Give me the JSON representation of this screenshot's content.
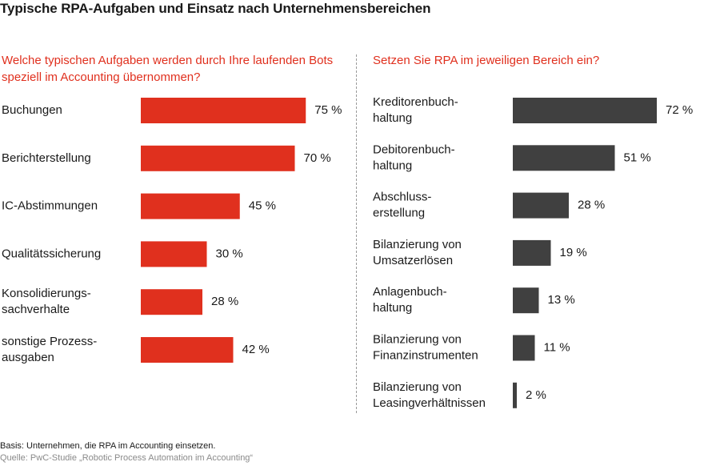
{
  "title": "Typische RPA-Aufgaben und Einsatz nach Unternehmensbereichen",
  "colors": {
    "left_bar": "#e0301e",
    "right_bar": "#404040",
    "question": "#e0301e"
  },
  "chart_data": [
    {
      "type": "bar",
      "orientation": "horizontal",
      "title": "Welche typischen Aufgaben werden durch Ihre laufenden Bots speziell im Accounting übernommen?",
      "categories": [
        [
          "Buchungen"
        ],
        [
          "Berichterstellung"
        ],
        [
          "IC-Abstimmungen"
        ],
        [
          "Qualitätssicherung"
        ],
        [
          "Konsolidierungs-",
          "sachverhalte"
        ],
        [
          "sonstige Prozess-",
          "ausgaben"
        ]
      ],
      "values": [
        75,
        70,
        45,
        30,
        28,
        42
      ],
      "value_labels": [
        "75 %",
        "70 %",
        "45 %",
        "30 %",
        "28 %",
        "42 %"
      ],
      "unit": "%",
      "xlim": [
        0,
        100
      ]
    },
    {
      "type": "bar",
      "orientation": "horizontal",
      "title": "Setzen Sie RPA im jeweiligen Bereich ein?",
      "categories": [
        [
          "Kreditorenbuch-",
          "haltung"
        ],
        [
          "Debitorenbuch-",
          "haltung"
        ],
        [
          "Abschluss-",
          "erstellung"
        ],
        [
          "Bilanzierung von",
          "Umsatzerlösen"
        ],
        [
          "Anlagenbuch-",
          "haltung"
        ],
        [
          "Bilanzierung von",
          "Finanzinstrumenten"
        ],
        [
          "Bilanzierung von",
          "Leasingverhältnissen"
        ]
      ],
      "values": [
        72,
        51,
        28,
        19,
        13,
        11,
        2
      ],
      "value_labels": [
        "72 %",
        "51 %",
        "28 %",
        "19 %",
        "13 %",
        "11 %",
        "2 %"
      ],
      "unit": "%",
      "xlim": [
        0,
        100
      ]
    }
  ],
  "footer": {
    "basis": "Basis: Unternehmen, die RPA im Accounting einsetzen.",
    "source": "Quelle: PwC-Studie „Robotic Process Automation im Accounting“"
  }
}
